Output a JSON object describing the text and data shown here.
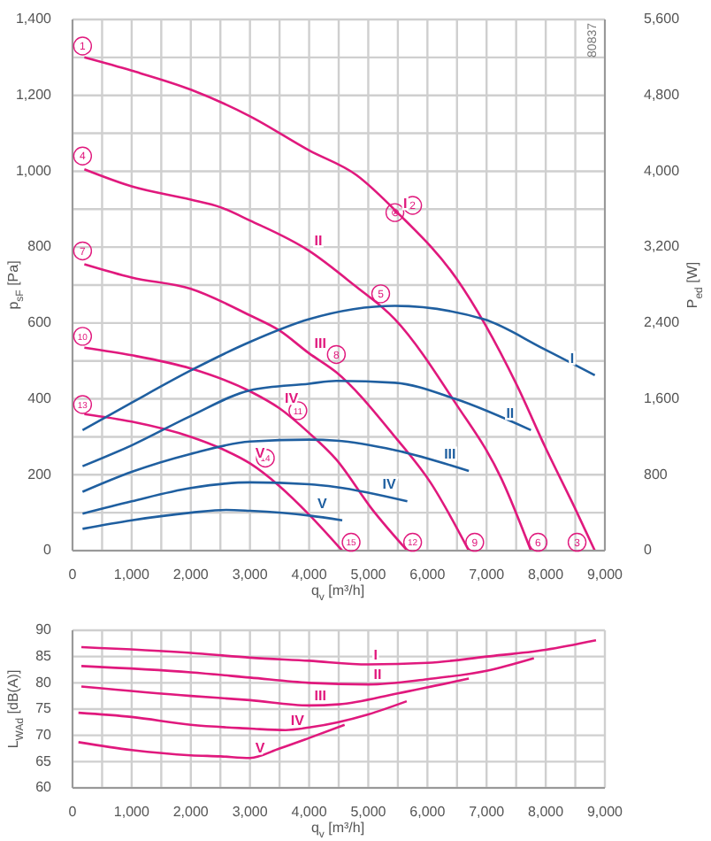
{
  "chart_data": [
    {
      "type": "line",
      "xlabel": "q$_{v}$ [m³/h]",
      "ylabel": "p$_{sF}$ [Pa]",
      "y2label": "P$_{ed}$ [W]",
      "marker": "none",
      "grid": true,
      "xlim": [
        0,
        9000
      ],
      "xticks": [
        0,
        {
          "value": 500,
          "label": null
        },
        {
          "value": 1000,
          "label": "1,000"
        },
        {
          "value": 1500,
          "label": null
        },
        {
          "value": 2000,
          "label": "2,000"
        },
        {
          "value": 2500,
          "label": null
        },
        {
          "value": 3000,
          "label": "3,000"
        },
        {
          "value": 3500,
          "label": null
        },
        {
          "value": 4000,
          "label": "4,000"
        },
        {
          "value": 4500,
          "label": null
        },
        {
          "value": 5000,
          "label": "5,000"
        },
        {
          "value": 5500,
          "label": null
        },
        {
          "value": 6000,
          "label": "6,000"
        },
        {
          "value": 6500,
          "label": null
        },
        {
          "value": 7000,
          "label": "7,000"
        },
        {
          "value": 7500,
          "label": null
        },
        {
          "value": 8000,
          "label": "8,000"
        },
        {
          "value": 8500,
          "label": null
        },
        {
          "value": 9000,
          "label": "9,000"
        }
      ],
      "ylim": [
        0,
        1400
      ],
      "yticks": [
        0,
        {
          "value": 100,
          "label": null
        },
        200,
        {
          "value": 300,
          "label": null
        },
        400,
        {
          "value": 500,
          "label": null
        },
        600,
        {
          "value": 700,
          "label": null
        },
        800,
        {
          "value": 900,
          "label": null
        },
        {
          "value": 1000,
          "label": "1,000"
        },
        {
          "value": 1100,
          "label": null
        },
        {
          "value": 1200,
          "label": "1,200"
        },
        {
          "value": 1300,
          "label": null
        },
        {
          "value": 1400,
          "label": "1,400"
        }
      ],
      "y2lim": [
        0,
        5600
      ],
      "y2ticks": [
        0,
        800,
        {
          "value": 1600,
          "label": "1,600"
        },
        {
          "value": 2400,
          "label": "2,400"
        },
        {
          "value": 3200,
          "label": "3,200"
        },
        {
          "value": 4000,
          "label": "4,000"
        },
        {
          "value": 4800,
          "label": "4,800"
        },
        {
          "value": 5600,
          "label": "5,600"
        }
      ],
      "series": [
        {
          "name": "I",
          "color": "#e0197d",
          "x": [
            200,
            1000,
            2000,
            3000,
            4000,
            4800,
            5500,
            6500,
            7500,
            8000,
            8500,
            8830
          ],
          "values": [
            1300,
            1265,
            1215,
            1145,
            1055,
            990,
            890,
            715,
            440,
            270,
            110,
            0
          ]
        },
        {
          "name": "II",
          "color": "#e0197d",
          "x": [
            200,
            1000,
            2000,
            2500,
            3000,
            4000,
            4760,
            5450,
            6470,
            7250,
            7750
          ],
          "values": [
            1005,
            960,
            925,
            905,
            870,
            790,
            700,
            610,
            390,
            190,
            0
          ]
        },
        {
          "name": "III",
          "color": "#e0197d",
          "x": [
            200,
            1000,
            2000,
            3000,
            3500,
            4000,
            4460,
            5450,
            6050,
            6700
          ],
          "values": [
            755,
            720,
            690,
            620,
            580,
            520,
            470,
            300,
            180,
            0
          ]
        },
        {
          "name": "IV",
          "color": "#e0197d",
          "x": [
            200,
            1000,
            2000,
            3000,
            3500,
            4000,
            4460,
            5060,
            5660
          ],
          "values": [
            535,
            515,
            480,
            420,
            375,
            310,
            240,
            110,
            0
          ]
        },
        {
          "name": "V",
          "color": "#e0197d",
          "x": [
            200,
            1000,
            2000,
            2500,
            3000,
            3500,
            4000,
            4560
          ],
          "values": [
            360,
            340,
            300,
            270,
            230,
            170,
            95,
            0
          ]
        },
        {
          "name": "I",
          "color": "#1f5fa0",
          "axis": "y2",
          "x": [
            170,
            1000,
            2000,
            3000,
            4000,
            5450,
            6950,
            7960,
            8830
          ],
          "values": [
            1270,
            1560,
            1900,
            2200,
            2440,
            2580,
            2440,
            2130,
            1850
          ]
        },
        {
          "name": "II",
          "color": "#1f5fa0",
          "axis": "y2",
          "x": [
            170,
            1000,
            2000,
            3000,
            4000,
            4460,
            5450,
            6470,
            7750
          ],
          "values": [
            890,
            1110,
            1420,
            1690,
            1760,
            1790,
            1770,
            1600,
            1270
          ]
        },
        {
          "name": "III",
          "color": "#1f5fa0",
          "axis": "y2",
          "x": [
            170,
            1000,
            2000,
            3000,
            4000,
            4460,
            5450,
            6700
          ],
          "values": [
            620,
            830,
            1020,
            1150,
            1170,
            1160,
            1060,
            840
          ]
        },
        {
          "name": "IV",
          "color": "#1f5fa0",
          "axis": "y2",
          "x": [
            170,
            1000,
            2000,
            3000,
            4000,
            4460,
            5660
          ],
          "values": [
            390,
            520,
            660,
            720,
            700,
            670,
            520
          ]
        },
        {
          "name": "V",
          "color": "#1f5fa0",
          "axis": "y2",
          "x": [
            170,
            1000,
            2000,
            2600,
            3000,
            4000,
            4560
          ],
          "values": [
            230,
            320,
            400,
            430,
            420,
            370,
            320
          ]
        }
      ],
      "annotations": [
        "80837",
        {
          "text": "1",
          "x": 170,
          "y": 1330
        },
        {
          "text": "2",
          "x": 5750,
          "y": 910
        },
        {
          "text": "3",
          "x": 8530,
          "y": 22
        },
        {
          "text": "4",
          "x": 170,
          "y": 1040
        },
        {
          "text": "5",
          "x": 5210,
          "y": 677
        },
        {
          "text": "6",
          "x": 7870,
          "y": 22
        },
        {
          "text": "7",
          "x": 170,
          "y": 790
        },
        {
          "text": "8",
          "x": 4460,
          "y": 517
        },
        {
          "text": "9",
          "x": 6800,
          "y": 22
        },
        {
          "text": "10",
          "x": 170,
          "y": 565
        },
        {
          "text": "11",
          "x": 3810,
          "y": 369
        },
        {
          "text": "12",
          "x": 5750,
          "y": 22
        },
        {
          "text": "13",
          "x": 170,
          "y": 385
        },
        {
          "text": "14",
          "x": 3260,
          "y": 244
        },
        {
          "text": "15",
          "x": 4710,
          "y": 22
        },
        {
          "text": "⊗",
          "x": 5450,
          "y": 891
        }
      ]
    },
    {
      "type": "line",
      "xlabel": "q$_{v}$ [m³/h]",
      "ylabel": "L$_{WAd}$ [dB(A)]",
      "marker": "none",
      "grid": true,
      "xlim": [
        0,
        9000
      ],
      "xticks": [
        0,
        {
          "value": 500,
          "label": null
        },
        {
          "value": 1000,
          "label": "1,000"
        },
        {
          "value": 1500,
          "label": null
        },
        {
          "value": 2000,
          "label": "2,000"
        },
        {
          "value": 2500,
          "label": null
        },
        {
          "value": 3000,
          "label": "3,000"
        },
        {
          "value": 3500,
          "label": null
        },
        {
          "value": 4000,
          "label": "4,000"
        },
        {
          "value": 4500,
          "label": null
        },
        {
          "value": 5000,
          "label": "5,000"
        },
        {
          "value": 5500,
          "label": null
        },
        {
          "value": 6000,
          "label": "6,000"
        },
        {
          "value": 6500,
          "label": null
        },
        {
          "value": 7000,
          "label": "7,000"
        },
        {
          "value": 7500,
          "label": null
        },
        {
          "value": 8000,
          "label": "8,000"
        },
        {
          "value": 8500,
          "label": null
        },
        {
          "value": 9000,
          "label": "9,000"
        }
      ],
      "ylim": [
        60,
        90
      ],
      "yticks": [
        60,
        65,
        70,
        75,
        80,
        85,
        90
      ],
      "series": [
        {
          "name": "I",
          "color": "#e0197d",
          "x": [
            150,
            2000,
            3000,
            4000,
            5000,
            6000,
            7000,
            8000,
            8850
          ],
          "values": [
            86.8,
            85.7,
            84.8,
            84.2,
            83.5,
            83.8,
            85,
            86.3,
            88.1
          ]
        },
        {
          "name": "II",
          "color": "#e0197d",
          "x": [
            150,
            2000,
            3000,
            4000,
            5000,
            6000,
            7000,
            7800
          ],
          "values": [
            83.2,
            82,
            81,
            80,
            79.7,
            80.7,
            82.3,
            84.7
          ]
        },
        {
          "name": "III",
          "color": "#e0197d",
          "x": [
            150,
            2000,
            3000,
            4000,
            4500,
            5500,
            6700
          ],
          "values": [
            79.3,
            77.5,
            76.7,
            75.7,
            75.9,
            78,
            80.8
          ]
        },
        {
          "name": "IV",
          "color": "#e0197d",
          "x": [
            100,
            1000,
            2000,
            3000,
            3600,
            4000,
            5000,
            5650
          ],
          "values": [
            74.3,
            73.5,
            72,
            71.3,
            71,
            71.5,
            74,
            76.5
          ]
        },
        {
          "name": "V",
          "color": "#e0197d",
          "x": [
            100,
            1000,
            2000,
            2500,
            3000,
            3500,
            4000,
            4600
          ],
          "values": [
            68.7,
            67.2,
            66.2,
            66,
            65.7,
            67.5,
            69.5,
            72
          ]
        }
      ]
    }
  ]
}
